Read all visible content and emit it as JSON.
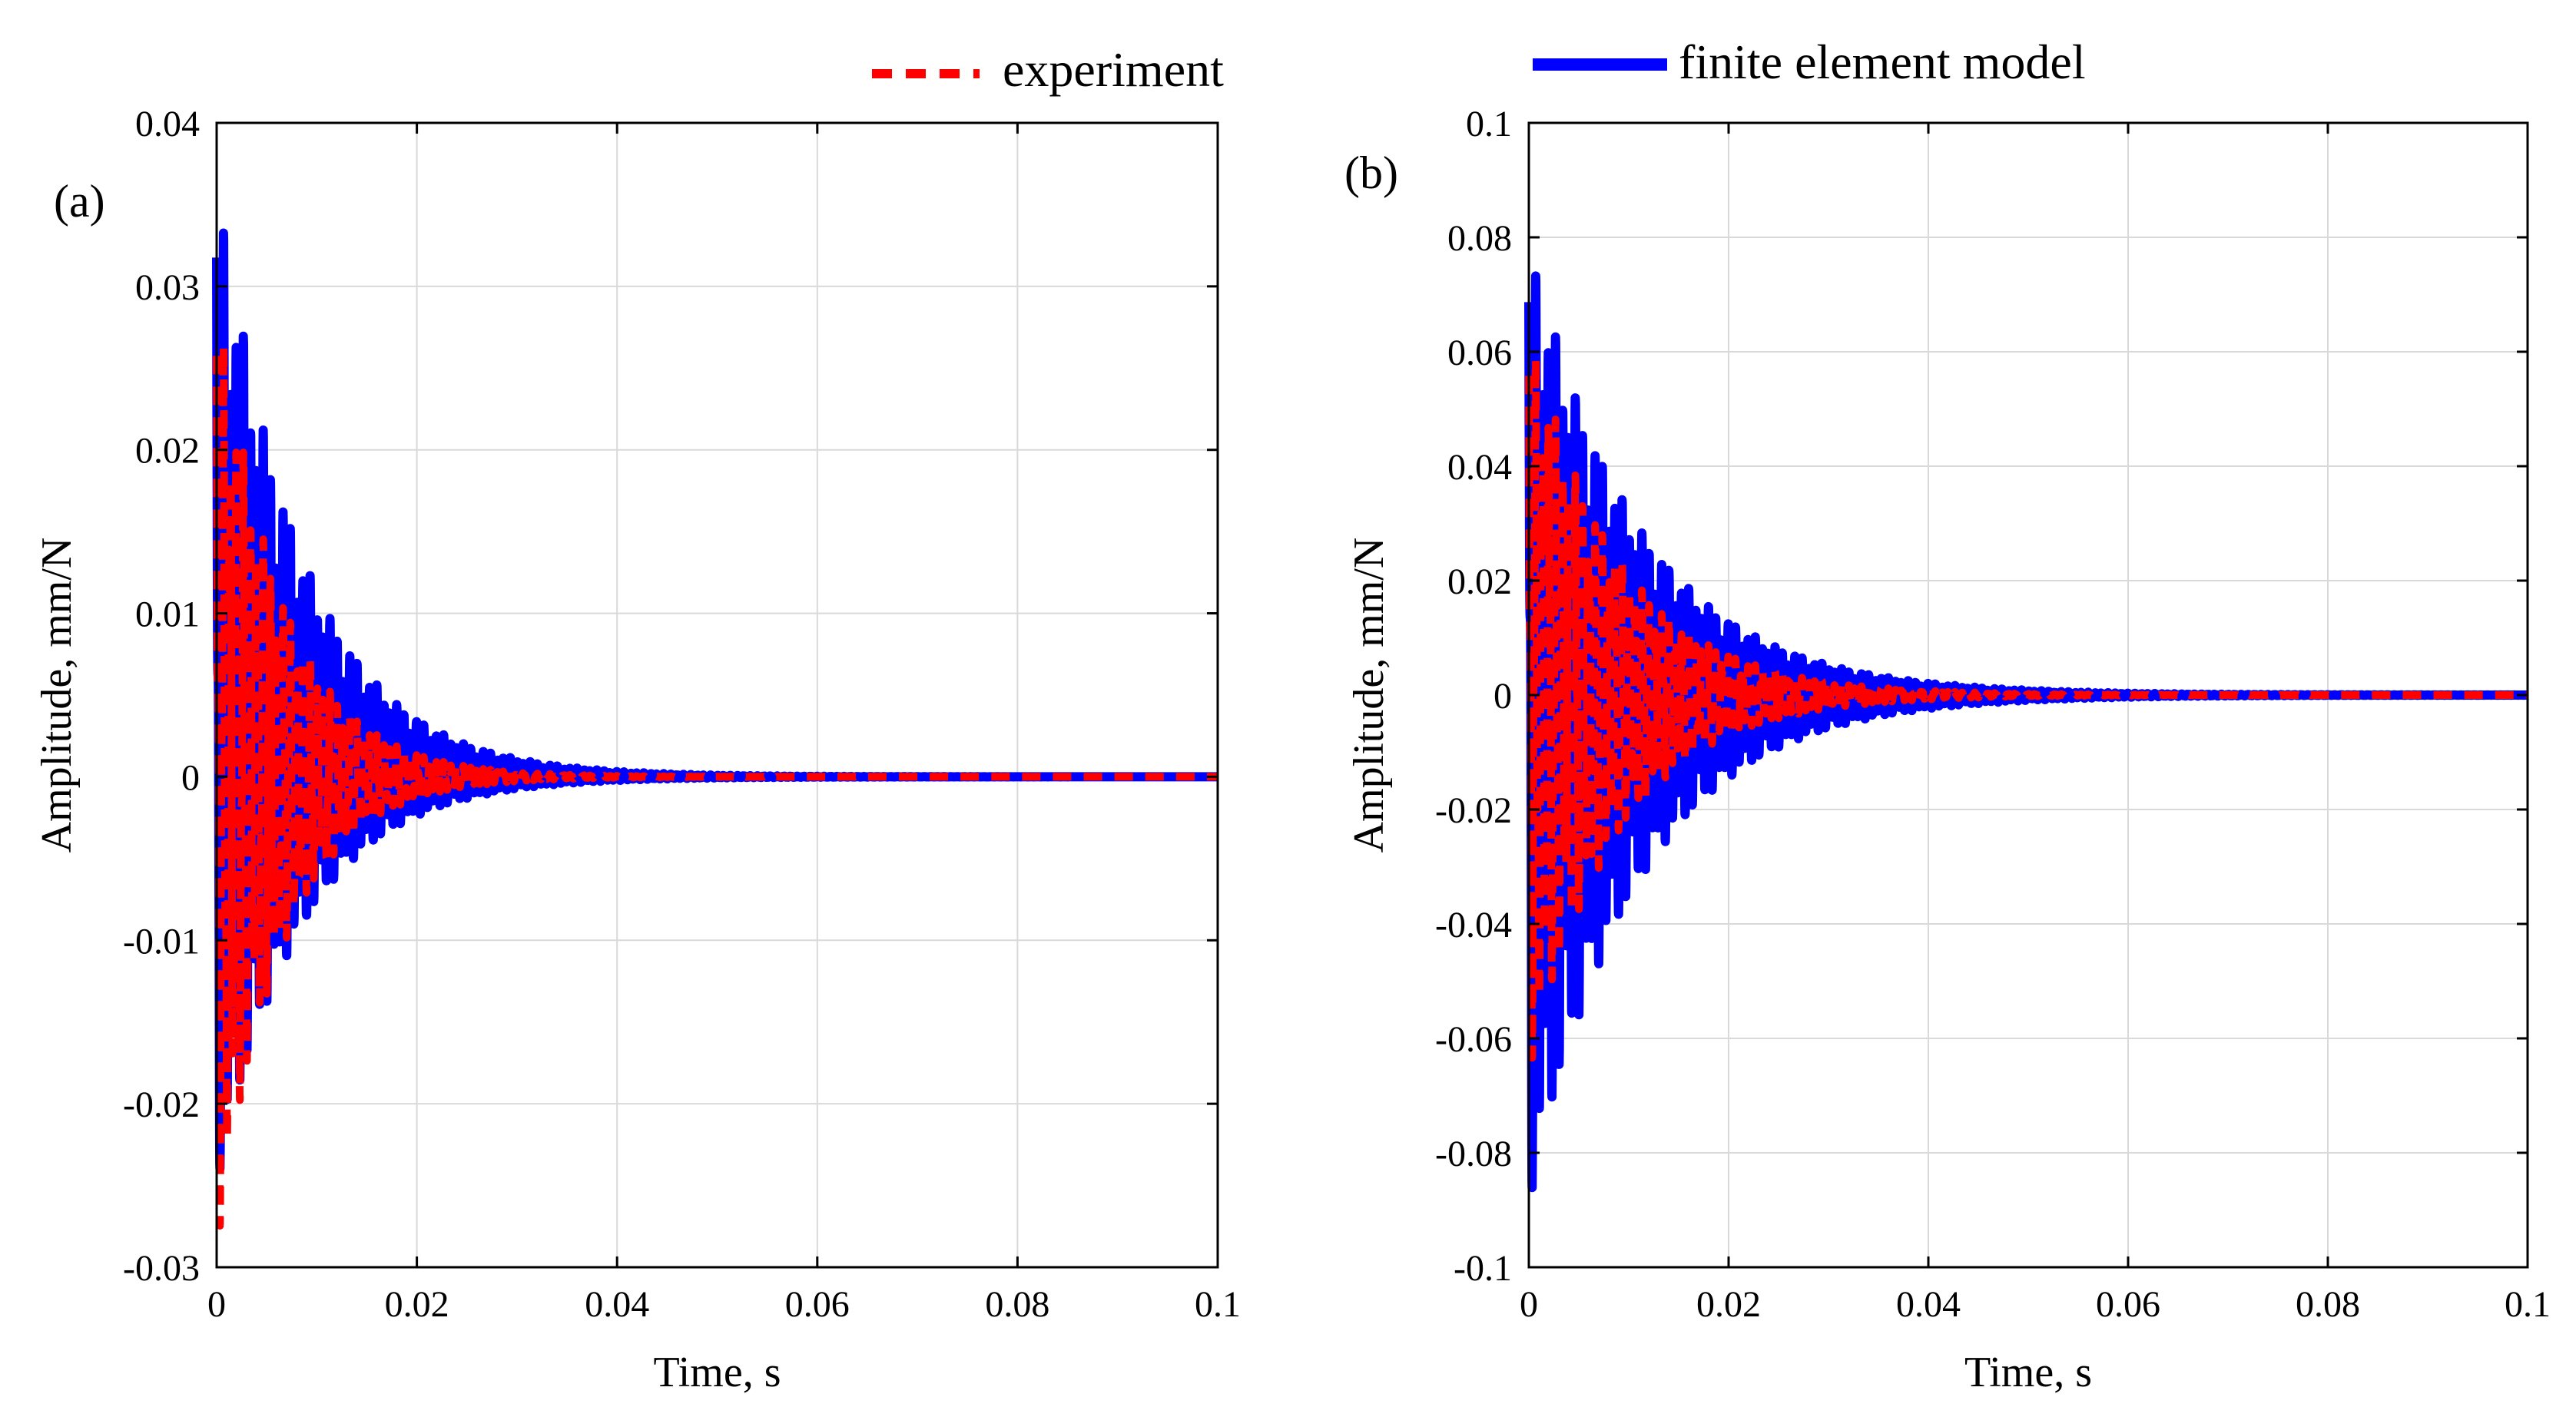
{
  "legend": {
    "entries": [
      {
        "label": "experiment",
        "color": "#ff0000",
        "style": "dashed"
      },
      {
        "label": "finite element model",
        "color": "#0000ff",
        "style": "solid"
      }
    ]
  },
  "chart_data": [
    {
      "type": "line",
      "panel_label": "(a)",
      "xlabel": "Time, s",
      "ylabel": "Amplitude, mm/N",
      "xlim": [
        0,
        0.1
      ],
      "ylim": [
        -0.03,
        0.04
      ],
      "xticks": [
        0,
        0.02,
        0.04,
        0.06,
        0.08,
        0.1
      ],
      "xtick_labels": [
        "0",
        "0.02",
        "0.04",
        "0.06",
        "0.08",
        "0.1"
      ],
      "yticks": [
        -0.03,
        -0.02,
        -0.01,
        0,
        0.01,
        0.02,
        0.03,
        0.04
      ],
      "ytick_labels": [
        "-0.03",
        "-0.02",
        "-0.01",
        "0",
        "0.01",
        "0.02",
        "0.03",
        "0.04"
      ],
      "grid": true,
      "series": [
        {
          "name": "finite element model",
          "color": "#0000ff",
          "style": "solid",
          "envelope_peak": [
            0.037,
            -0.025
          ],
          "decay_time": 0.0085,
          "frequency_hz": 1500
        },
        {
          "name": "experiment",
          "color": "#ff0000",
          "style": "dashed",
          "envelope_peak": [
            0.03,
            -0.029
          ],
          "decay_time": 0.0065,
          "frequency_hz": 1500
        }
      ]
    },
    {
      "type": "line",
      "panel_label": "(b)",
      "xlabel": "Time, s",
      "ylabel": "Amplitude, mm/N",
      "xlim": [
        0,
        0.1
      ],
      "ylim": [
        -0.1,
        0.1
      ],
      "xticks": [
        0,
        0.02,
        0.04,
        0.06,
        0.08,
        0.1
      ],
      "xtick_labels": [
        "0",
        "0.02",
        "0.04",
        "0.06",
        "0.08",
        "0.1"
      ],
      "yticks": [
        -0.1,
        -0.08,
        -0.06,
        -0.04,
        -0.02,
        0,
        0.02,
        0.04,
        0.06,
        0.08,
        0.1
      ],
      "ytick_labels": [
        "-0.1",
        "-0.08",
        "-0.06",
        "-0.04",
        "-0.02",
        "0",
        "0.02",
        "0.04",
        "0.06",
        "0.08",
        "0.1"
      ],
      "grid": true,
      "series": [
        {
          "name": "finite element model",
          "color": "#0000ff",
          "style": "solid",
          "envelope_peak": [
            0.08,
            -0.089
          ],
          "decay_time": 0.011,
          "frequency_hz": 1500
        },
        {
          "name": "experiment",
          "color": "#ff0000",
          "style": "dashed",
          "envelope_peak": [
            0.065,
            -0.066
          ],
          "decay_time": 0.009,
          "frequency_hz": 1500
        }
      ]
    }
  ]
}
